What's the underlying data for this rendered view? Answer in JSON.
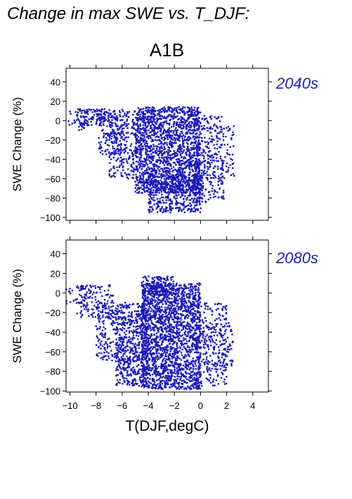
{
  "page": {
    "title": "Change in max SWE vs. T_DJF:",
    "scenario": "A1B"
  },
  "colors": {
    "points": "#1a1ab8",
    "period_label": "#2222aa",
    "axis": "#000000"
  },
  "chart_data": [
    {
      "type": "scatter",
      "period_label": "2040s",
      "xlabel": "T(DJF,degC)",
      "ylabel": "SWE Change (%)",
      "xlim": [
        -10.3,
        5.2
      ],
      "ylim": [
        -103,
        54
      ],
      "xticks": [
        -10,
        -8,
        -6,
        -4,
        -2,
        0,
        2,
        4
      ],
      "yticks": [
        -100,
        -80,
        -60,
        -40,
        -20,
        0,
        20,
        40
      ],
      "x_tick_labels_shown": false,
      "grid": false,
      "clusters": [
        {
          "x": [
            -10.3,
            -8.6
          ],
          "y": [
            -12,
            12
          ],
          "n": 28
        },
        {
          "x": [
            -9.5,
            -6.8
          ],
          "y": [
            -5,
            12
          ],
          "n": 120
        },
        {
          "x": [
            -7.8,
            -6.0
          ],
          "y": [
            -35,
            10
          ],
          "n": 130
        },
        {
          "x": [
            -7.0,
            -5.0
          ],
          "y": [
            -60,
            12
          ],
          "n": 220
        },
        {
          "x": [
            -5.0,
            0.0
          ],
          "y": [
            -75,
            14
          ],
          "n": 1700
        },
        {
          "x": [
            -4.0,
            0.2
          ],
          "y": [
            -95,
            -55
          ],
          "n": 450
        },
        {
          "x": [
            -0.5,
            1.8
          ],
          "y": [
            -85,
            5
          ],
          "n": 260
        },
        {
          "x": [
            0.5,
            2.6
          ],
          "y": [
            -60,
            -5
          ],
          "n": 90
        }
      ]
    },
    {
      "type": "scatter",
      "period_label": "2080s",
      "xlabel": "T(DJF,degC)",
      "ylabel": "SWE Change (%)",
      "xlim": [
        -10.3,
        5.2
      ],
      "ylim": [
        -101,
        54
      ],
      "xticks": [
        -10,
        -8,
        -6,
        -4,
        -2,
        0,
        2,
        4
      ],
      "yticks": [
        -100,
        -80,
        -60,
        -40,
        -20,
        0,
        20,
        40
      ],
      "x_tick_labels_shown": true,
      "grid": false,
      "clusters": [
        {
          "x": [
            -10.3,
            -8.6
          ],
          "y": [
            -15,
            5
          ],
          "n": 28
        },
        {
          "x": [
            -9.5,
            -6.5
          ],
          "y": [
            -25,
            8
          ],
          "n": 140
        },
        {
          "x": [
            -8.0,
            -6.0
          ],
          "y": [
            -70,
            -10
          ],
          "n": 150
        },
        {
          "x": [
            -6.5,
            -4.0
          ],
          "y": [
            -95,
            -10
          ],
          "n": 600
        },
        {
          "x": [
            -4.5,
            0.0
          ],
          "y": [
            -98,
            10
          ],
          "n": 1900
        },
        {
          "x": [
            -4.5,
            -2.0
          ],
          "y": [
            -2,
            17
          ],
          "n": 150
        },
        {
          "x": [
            -0.5,
            2.0
          ],
          "y": [
            -95,
            -10
          ],
          "n": 300
        },
        {
          "x": [
            1.0,
            2.5
          ],
          "y": [
            -75,
            -30
          ],
          "n": 60
        }
      ]
    }
  ]
}
